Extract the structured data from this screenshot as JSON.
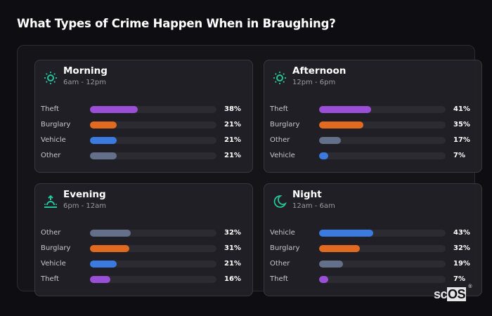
{
  "title": "What Types of Crime Happen When in Braughing?",
  "colors": {
    "Theft": "#9b4fd6",
    "Burglary": "#e06a1f",
    "Vehicle": "#3b7be0",
    "Other": "#64708a",
    "icon": "#25c49a"
  },
  "cards": [
    {
      "name": "Morning",
      "range": "6am - 12pm",
      "icon": "sun-icon",
      "rows": [
        {
          "label": "Theft",
          "pct": "38%",
          "value": 38
        },
        {
          "label": "Burglary",
          "pct": "21%",
          "value": 21
        },
        {
          "label": "Vehicle",
          "pct": "21%",
          "value": 21
        },
        {
          "label": "Other",
          "pct": "21%",
          "value": 21
        }
      ]
    },
    {
      "name": "Afternoon",
      "range": "12pm - 6pm",
      "icon": "sun-icon",
      "rows": [
        {
          "label": "Theft",
          "pct": "41%",
          "value": 41
        },
        {
          "label": "Burglary",
          "pct": "35%",
          "value": 35
        },
        {
          "label": "Other",
          "pct": "17%",
          "value": 17
        },
        {
          "label": "Vehicle",
          "pct": "7%",
          "value": 7
        }
      ]
    },
    {
      "name": "Evening",
      "range": "6pm - 12am",
      "icon": "sunset-icon",
      "rows": [
        {
          "label": "Other",
          "pct": "32%",
          "value": 32
        },
        {
          "label": "Burglary",
          "pct": "31%",
          "value": 31
        },
        {
          "label": "Vehicle",
          "pct": "21%",
          "value": 21
        },
        {
          "label": "Theft",
          "pct": "16%",
          "value": 16
        }
      ]
    },
    {
      "name": "Night",
      "range": "12am - 6am",
      "icon": "moon-icon",
      "rows": [
        {
          "label": "Vehicle",
          "pct": "43%",
          "value": 43
        },
        {
          "label": "Burglary",
          "pct": "32%",
          "value": 32
        },
        {
          "label": "Other",
          "pct": "19%",
          "value": 19
        },
        {
          "label": "Theft",
          "pct": "7%",
          "value": 7
        }
      ]
    }
  ],
  "logo": {
    "text_a": "sc",
    "text_b": "OS",
    "reg": "®"
  },
  "chart_data": {
    "type": "bar",
    "title": "What Types of Crime Happen When in Braughing?",
    "orientation": "horizontal",
    "xlim": [
      0,
      100
    ],
    "unit": "%",
    "panels": [
      {
        "title": "Morning",
        "subtitle": "6am - 12pm",
        "categories": [
          "Theft",
          "Burglary",
          "Vehicle",
          "Other"
        ],
        "values": [
          38,
          21,
          21,
          21
        ]
      },
      {
        "title": "Afternoon",
        "subtitle": "12pm - 6pm",
        "categories": [
          "Theft",
          "Burglary",
          "Other",
          "Vehicle"
        ],
        "values": [
          41,
          35,
          17,
          7
        ]
      },
      {
        "title": "Evening",
        "subtitle": "6pm - 12am",
        "categories": [
          "Other",
          "Burglary",
          "Vehicle",
          "Theft"
        ],
        "values": [
          32,
          31,
          21,
          16
        ]
      },
      {
        "title": "Night",
        "subtitle": "12am - 6am",
        "categories": [
          "Vehicle",
          "Burglary",
          "Other",
          "Theft"
        ],
        "values": [
          43,
          32,
          19,
          7
        ]
      }
    ]
  }
}
